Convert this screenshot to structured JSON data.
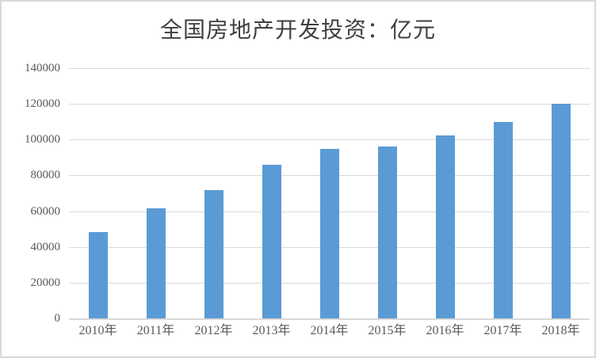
{
  "colors": {
    "bar": "#5B9BD5",
    "gridline": "#D9D9D9",
    "axis_line": "#D9D9D9",
    "tick_label": "#595959",
    "title": "#404040",
    "background": "#FFFFFF",
    "border": "#D9D9D9"
  },
  "chart_data": {
    "type": "bar",
    "title": "全国房地产开发投资：亿元",
    "unit": "亿元",
    "categories": [
      "2010年",
      "2011年",
      "2012年",
      "2013年",
      "2014年",
      "2015年",
      "2016年",
      "2017年",
      "2018年"
    ],
    "values": [
      48267,
      61797,
      71804,
      86013,
      95036,
      95979,
      102581,
      109799,
      120264
    ],
    "xlabel": "",
    "ylabel": "",
    "ylim": [
      0,
      140000
    ],
    "ytick_interval": 20000,
    "yticks": [
      0,
      20000,
      40000,
      60000,
      80000,
      100000,
      120000,
      140000
    ],
    "grid": true,
    "legend": false,
    "bar_color": "#5B9BD5"
  }
}
